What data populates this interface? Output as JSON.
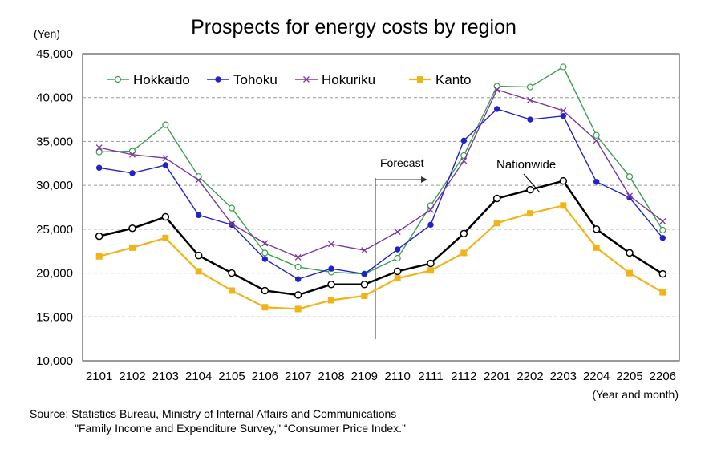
{
  "chart_data": {
    "type": "line",
    "title": "Prospects for energy costs by region",
    "ylabel": "(Yen)",
    "xlabel": "(Year and month)",
    "ylim": [
      10000,
      45000
    ],
    "yticks": [
      10000,
      15000,
      20000,
      25000,
      30000,
      35000,
      40000,
      45000
    ],
    "ytick_labels": [
      "10,000",
      "15,000",
      "20,000",
      "25,000",
      "30,000",
      "35,000",
      "40,000",
      "45,000"
    ],
    "categories": [
      "2101",
      "2102",
      "2103",
      "2104",
      "2105",
      "2106",
      "2107",
      "2108",
      "2109",
      "2110",
      "2111",
      "2112",
      "2201",
      "2202",
      "2203",
      "2204",
      "2205",
      "2206"
    ],
    "grid": "horizontal dashed",
    "legend_position": "top-left",
    "series": [
      {
        "name": "Hokkaido",
        "color": "#3aa04a",
        "marker": "open-circle",
        "values": [
          33800,
          33900,
          36900,
          31000,
          27400,
          22300,
          20700,
          20100,
          19900,
          21700,
          27700,
          33400,
          41300,
          41200,
          43500,
          35700,
          31000,
          24900
        ]
      },
      {
        "name": "Tohoku",
        "color": "#1f23c8",
        "marker": "filled-circle",
        "values": [
          32000,
          31400,
          32300,
          26600,
          25500,
          21600,
          19300,
          20500,
          19900,
          22700,
          25500,
          35100,
          38700,
          37500,
          37900,
          30400,
          28600,
          24000
        ]
      },
      {
        "name": "Hokuriku",
        "color": "#7a3aa0",
        "marker": "x",
        "values": [
          34300,
          33500,
          33100,
          30600,
          25600,
          23400,
          21800,
          23300,
          22600,
          24700,
          27200,
          32800,
          40900,
          39700,
          38500,
          35100,
          28800,
          25900
        ]
      },
      {
        "name": "Kanto",
        "color": "#f0b418",
        "marker": "square",
        "values": [
          21900,
          22900,
          24000,
          20200,
          18000,
          16100,
          15900,
          16900,
          17400,
          19400,
          20300,
          22300,
          25700,
          26800,
          27700,
          22900,
          20000,
          17800
        ]
      },
      {
        "name": "Nationwide",
        "color": "#000000",
        "marker": "open-circle-black",
        "values": [
          24200,
          25100,
          26400,
          22000,
          20000,
          18000,
          17500,
          18700,
          18700,
          20200,
          21100,
          24500,
          28500,
          29500,
          30500,
          25000,
          22300,
          19900
        ]
      }
    ],
    "annotations": {
      "forecast": "Forecast",
      "nationwide": "Nationwide"
    }
  },
  "source": {
    "line1": "Source: Statistics Bureau, Ministry of Internal Affairs and Communications",
    "line2": "\"Family Income and Expenditure Survey,\" “Consumer Price Index.”"
  }
}
